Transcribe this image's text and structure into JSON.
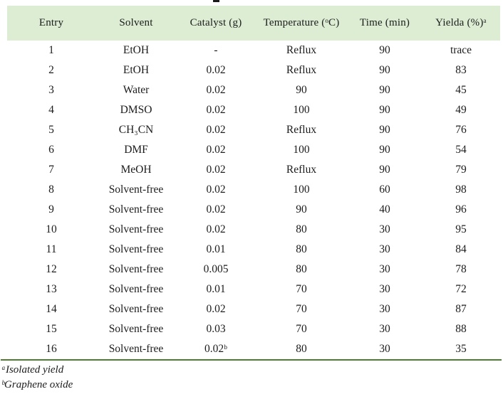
{
  "table": {
    "headers": [
      "Entry",
      "Solvent",
      "Catalyst (g)",
      "Temperature (ᵒC)",
      "Time (min)",
      "Yielda (%)ᵃ"
    ],
    "rows": [
      [
        "1",
        "EtOH",
        "-",
        "Reflux",
        "90",
        "trace"
      ],
      [
        "2",
        "EtOH",
        "0.02",
        "Reflux",
        "90",
        "83"
      ],
      [
        "3",
        "Water",
        "0.02",
        "90",
        "90",
        "45"
      ],
      [
        "4",
        "DMSO",
        "0.02",
        "100",
        "90",
        "49"
      ],
      [
        "5",
        "CH₃CN",
        "0.02",
        "Reflux",
        "90",
        "76"
      ],
      [
        "6",
        "DMF",
        "0.02",
        "100",
        "90",
        "54"
      ],
      [
        "7",
        "MeOH",
        "0.02",
        "Reflux",
        "90",
        "79"
      ],
      [
        "8",
        "Solvent-free",
        "0.02",
        "100",
        "60",
        "98"
      ],
      [
        "9",
        "Solvent-free",
        "0.02",
        "90",
        "40",
        "96"
      ],
      [
        "10",
        "Solvent-free",
        "0.02",
        "80",
        "30",
        "95"
      ],
      [
        "11",
        "Solvent-free",
        "0.01",
        "80",
        "30",
        "84"
      ],
      [
        "12",
        "Solvent-free",
        "0.005",
        "80",
        "30",
        "78"
      ],
      [
        "13",
        "Solvent-free",
        "0.01",
        "70",
        "30",
        "72"
      ],
      [
        "14",
        "Solvent-free",
        "0.02",
        "70",
        "30",
        "87"
      ],
      [
        "15",
        "Solvent-free",
        "0.03",
        "70",
        "30",
        "88"
      ],
      [
        "16",
        "Solvent-free",
        "0.02ᵇ",
        "80",
        "30",
        "35"
      ]
    ]
  },
  "footnotes": [
    "ᵃIsolated yield",
    "ᵇGraphene oxide"
  ],
  "colors": {
    "header_background": "#dcedd3",
    "bottom_rule_green": "#4e7c31",
    "text": "#1c1c1c"
  }
}
